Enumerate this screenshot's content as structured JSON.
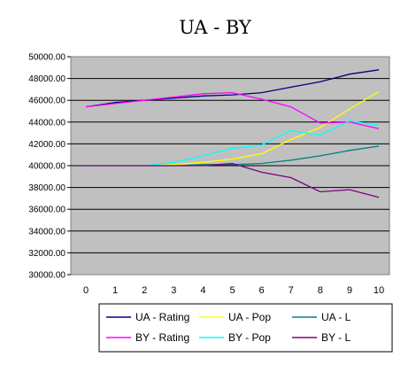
{
  "chart_data": {
    "type": "line",
    "title": "UA - BY",
    "xlabel": "",
    "ylabel": "",
    "x": [
      0,
      1,
      2,
      3,
      4,
      5,
      6,
      7,
      8,
      9,
      10
    ],
    "xlim": [
      0,
      10
    ],
    "ylim": [
      30000,
      50000
    ],
    "yticks": [
      "30000.00",
      "32000.00",
      "34000.00",
      "36000.00",
      "38000.00",
      "40000.00",
      "42000.00",
      "44000.00",
      "46000.00",
      "48000.00",
      "50000.00"
    ],
    "xticks": [
      "0",
      "1",
      "2",
      "3",
      "4",
      "5",
      "6",
      "7",
      "8",
      "9",
      "10"
    ],
    "grid": true,
    "legend_position": "bottom",
    "plot_background": "#c0c0c0",
    "series": [
      {
        "name": "UA - Rating",
        "color": "#000080",
        "values": [
          45400,
          45800,
          46000,
          46200,
          46400,
          46500,
          46700,
          47200,
          47700,
          48400,
          48800
        ]
      },
      {
        "name": "UA - Pop",
        "color": "#ffff00",
        "values": [
          40000,
          40000,
          40000,
          40100,
          40300,
          40600,
          41100,
          42400,
          43500,
          45200,
          46800
        ]
      },
      {
        "name": "UA - L",
        "color": "#008080",
        "values": [
          40000,
          40000,
          40000,
          40000,
          40100,
          40100,
          40200,
          40500,
          40900,
          41400,
          41800
        ]
      },
      {
        "name": "BY - Rating",
        "color": "#ff00ff",
        "values": [
          45400,
          45700,
          46000,
          46300,
          46600,
          46700,
          46100,
          45400,
          43900,
          44000,
          43400
        ]
      },
      {
        "name": "BY - Pop",
        "color": "#00ffff",
        "values": [
          40000,
          40000,
          40000,
          40300,
          40900,
          41600,
          41900,
          43200,
          42800,
          44100,
          43700
        ]
      },
      {
        "name": "BY - L",
        "color": "#800080",
        "values": [
          40000,
          40000,
          40000,
          40000,
          40000,
          40200,
          39400,
          38900,
          37600,
          37800,
          37100
        ]
      }
    ]
  }
}
